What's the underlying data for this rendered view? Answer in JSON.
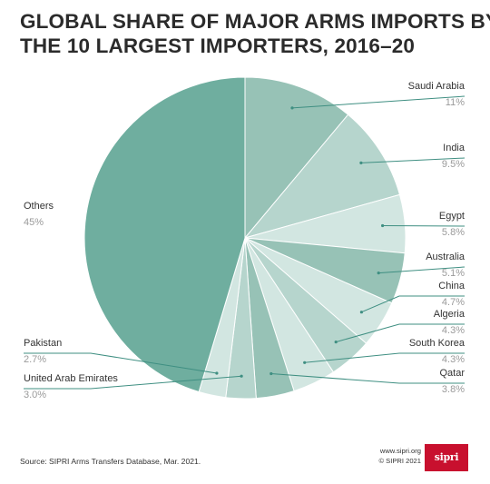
{
  "title_line1": "GLOBAL SHARE OF MAJOR ARMS IMPORTS BY",
  "title_line2": "THE 10 LARGEST IMPORTERS, 2016–20",
  "source": "Source: SIPRI Arms Transfers Database, Mar. 2021.",
  "credit_url": "www.sipri.org",
  "credit_copyright": "© SIPRI 2021",
  "logo_text": "sipri",
  "colors": {
    "dark_teal": "#6fae9f",
    "mid_teal": "#97c2b6",
    "light_teal": "#b6d5cd",
    "pale_teal": "#d2e6e1",
    "leader_line": "#3f8f82"
  },
  "chart_data": {
    "type": "pie",
    "title": "GLOBAL SHARE OF MAJOR ARMS IMPORTS BY THE 10 LARGEST IMPORTERS, 2016–20",
    "unit": "%",
    "slices": [
      {
        "label": "Saudi Arabia",
        "value": 11,
        "display": "11%",
        "color": "#97c2b6"
      },
      {
        "label": "India",
        "value": 9.5,
        "display": "9.5%",
        "color": "#b6d5cd"
      },
      {
        "label": "Egypt",
        "value": 5.8,
        "display": "5.8%",
        "color": "#d2e6e1"
      },
      {
        "label": "Australia",
        "value": 5.1,
        "display": "5.1%",
        "color": "#97c2b6"
      },
      {
        "label": "China",
        "value": 4.7,
        "display": "4.7%",
        "color": "#d2e6e1"
      },
      {
        "label": "Algeria",
        "value": 4.3,
        "display": "4.3%",
        "color": "#b6d5cd"
      },
      {
        "label": "South Korea",
        "value": 4.3,
        "display": "4.3%",
        "color": "#d2e6e1"
      },
      {
        "label": "Qatar",
        "value": 3.8,
        "display": "3.8%",
        "color": "#97c2b6"
      },
      {
        "label": "United Arab Emirates",
        "value": 3.0,
        "display": "3.0%",
        "color": "#b6d5cd"
      },
      {
        "label": "Pakistan",
        "value": 2.7,
        "display": "2.7%",
        "color": "#d2e6e1"
      },
      {
        "label": "Others",
        "value": 45,
        "display": "45%",
        "color": "#6fae9f"
      }
    ]
  }
}
